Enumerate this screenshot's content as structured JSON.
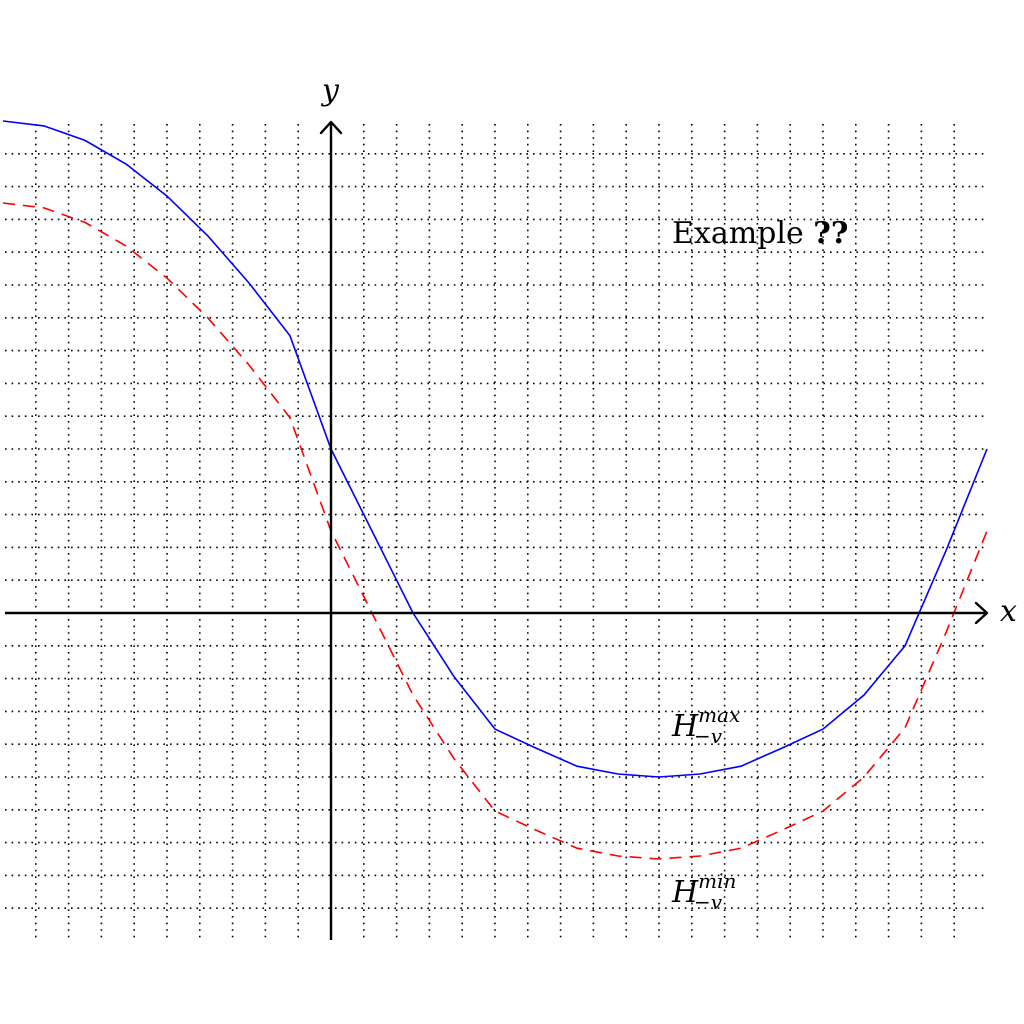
{
  "chart_data": {
    "type": "line",
    "title": "",
    "xlabel": "x",
    "ylabel": "y",
    "xlim": [
      -1,
      2
    ],
    "ylim": [
      -1,
      1.5
    ],
    "grid": true,
    "annotation": {
      "prefix": "Example ",
      "ref": "??"
    },
    "series": [
      {
        "name": "H_{-v}^{max}",
        "label_main": "H",
        "label_sub": "−v",
        "label_sup": "max",
        "color": "#0000ff",
        "style": "solid",
        "x": [
          -1.0,
          -0.875,
          -0.75,
          -0.625,
          -0.5,
          -0.375,
          -0.25,
          -0.125,
          0.0,
          0.125,
          0.25,
          0.375,
          0.5,
          0.625,
          0.75,
          0.875,
          1.0,
          1.125,
          1.25,
          1.375,
          1.5,
          1.625,
          1.75,
          1.875,
          2.0
        ],
        "y": [
          1.5,
          1.485,
          1.441,
          1.369,
          1.271,
          1.149,
          1.006,
          0.845,
          0.5,
          0.25,
          0.0,
          -0.194,
          -0.354,
          -0.412,
          -0.467,
          -0.491,
          -0.5,
          -0.491,
          -0.467,
          -0.412,
          -0.354,
          -0.25,
          -0.1,
          0.19,
          0.5
        ]
      },
      {
        "name": "H_{-v}^{min}",
        "label_main": "H",
        "label_sub": "−v",
        "label_sup": "min",
        "color": "#ff0000",
        "style": "dashed",
        "x": [
          -1.0,
          -0.875,
          -0.75,
          -0.625,
          -0.5,
          -0.375,
          -0.25,
          -0.125,
          0.0,
          0.125,
          0.25,
          0.375,
          0.5,
          0.625,
          0.75,
          0.875,
          1.0,
          1.125,
          1.25,
          1.375,
          1.5,
          1.625,
          1.75,
          1.875,
          2.0
        ],
        "y": [
          1.25,
          1.235,
          1.191,
          1.119,
          1.021,
          0.899,
          0.756,
          0.595,
          0.25,
          0.0,
          -0.25,
          -0.444,
          -0.604,
          -0.662,
          -0.717,
          -0.741,
          -0.75,
          -0.741,
          -0.717,
          -0.662,
          -0.604,
          -0.5,
          -0.35,
          -0.06,
          0.25
        ]
      }
    ]
  }
}
